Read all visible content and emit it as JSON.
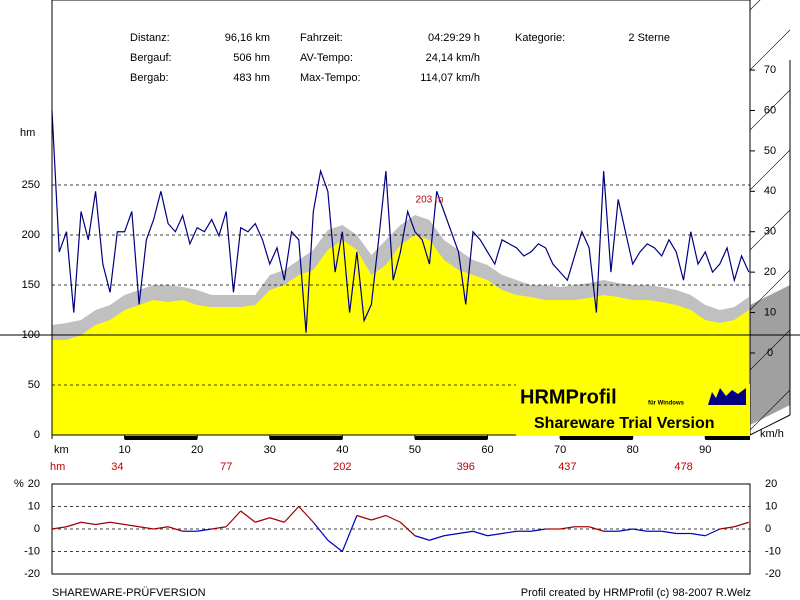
{
  "header": {
    "stats": [
      {
        "label": "Distanz:",
        "value": "96,16 km"
      },
      {
        "label": "Bergauf:",
        "value": "506 hm"
      },
      {
        "label": "Bergab:",
        "value": "483 hm"
      },
      {
        "label": "Fahrzeit:",
        "value": "04:29:29 h"
      },
      {
        "label": "AV-Tempo:",
        "value": "24,14 km/h"
      },
      {
        "label": "Max-Tempo:",
        "value": "114,07 km/h"
      },
      {
        "label": "Kategorie:",
        "value": "2 Sterne"
      }
    ]
  },
  "logo": {
    "title": "HRMProfil",
    "subtitle": "für Windows",
    "trial": "Shareware Trial  Version"
  },
  "footer": {
    "left": "SHAREWARE-PRÜFVERSION",
    "right": "Profil created by HRMProfil (c) 98-2007 R.Welz"
  },
  "chart_data": [
    {
      "type": "area",
      "y_label": "hm",
      "y2_label": "km/h",
      "annotation": {
        "text": "203 m",
        "x": 52
      },
      "climb": {
        "label": "hm",
        "x": [
          9,
          24,
          40,
          57,
          71,
          87
        ],
        "values": [
          34,
          77,
          202,
          396,
          437,
          478
        ]
      },
      "xlim": [
        0,
        96.16
      ],
      "xticks": [
        {
          "value": 0,
          "label": "km"
        },
        10,
        20,
        30,
        40,
        50,
        60,
        70,
        80,
        90
      ],
      "ylim": [
        0,
        430
      ],
      "yticks": [
        0,
        50,
        100,
        150,
        200,
        250
      ],
      "y2lim": [
        -20.3,
        86.1
      ],
      "y2ticks": [
        0,
        10,
        20,
        30,
        40,
        50,
        60,
        70
      ],
      "grid": true,
      "x": [
        0,
        2,
        4,
        6,
        8,
        10,
        12,
        14,
        16,
        18,
        20,
        22,
        24,
        26,
        28,
        30,
        32,
        34,
        36,
        38,
        40,
        42,
        44,
        46,
        48,
        50,
        52,
        54,
        56,
        58,
        60,
        62,
        64,
        66,
        68,
        70,
        72,
        74,
        76,
        78,
        80,
        82,
        84,
        86,
        88,
        90,
        92,
        94,
        96
      ],
      "series": [
        {
          "color": "#c0c0c0",
          "values": [
            110,
            112,
            115,
            125,
            130,
            140,
            145,
            150,
            150,
            148,
            145,
            140,
            140,
            140,
            140,
            160,
            165,
            175,
            185,
            205,
            210,
            200,
            180,
            195,
            210,
            220,
            215,
            195,
            185,
            175,
            170,
            160,
            155,
            150,
            150,
            148,
            150,
            152,
            155,
            152,
            150,
            150,
            148,
            145,
            140,
            130,
            125,
            128,
            138
          ]
        },
        {
          "color": "#ffff00",
          "values": [
            95,
            95,
            100,
            110,
            115,
            125,
            130,
            135,
            133,
            135,
            130,
            128,
            128,
            128,
            130,
            145,
            150,
            160,
            165,
            185,
            195,
            185,
            160,
            170,
            190,
            200,
            195,
            175,
            165,
            160,
            155,
            145,
            140,
            138,
            135,
            135,
            135,
            137,
            140,
            138,
            135,
            135,
            133,
            130,
            125,
            115,
            112,
            115,
            125
          ]
        },
        {
          "color": "#000080",
          "axis": "y2",
          "x": [
            0,
            1,
            2,
            3,
            4,
            5,
            6,
            7,
            8,
            9,
            10,
            11,
            12,
            13,
            14,
            15,
            16,
            17,
            18,
            19,
            20,
            21,
            22,
            23,
            24,
            25,
            26,
            27,
            28,
            29,
            30,
            31,
            32,
            33,
            34,
            35,
            36,
            37,
            38,
            39,
            40,
            41,
            42,
            43,
            44,
            45,
            46,
            47,
            48,
            49,
            50,
            51,
            52,
            53,
            54,
            55,
            56,
            57,
            58,
            59,
            60,
            61,
            62,
            63,
            64,
            65,
            66,
            67,
            68,
            69,
            70,
            71,
            72,
            73,
            74,
            75,
            76,
            77,
            78,
            79,
            80,
            81,
            82,
            83,
            84,
            85,
            86,
            87,
            88,
            89,
            90,
            91,
            92,
            93,
            94,
            95,
            96
          ],
          "values": [
            60,
            25,
            30,
            10,
            35,
            28,
            40,
            22,
            15,
            30,
            30,
            35,
            12,
            28,
            33,
            40,
            32,
            30,
            34,
            27,
            31,
            30,
            33,
            29,
            35,
            15,
            31,
            30,
            32,
            28,
            22,
            26,
            18,
            30,
            28,
            5,
            35,
            45,
            40,
            20,
            30,
            10,
            25,
            8,
            12,
            28,
            45,
            18,
            25,
            35,
            30,
            28,
            22,
            40,
            35,
            30,
            25,
            12,
            30,
            28,
            25,
            22,
            28,
            27,
            26,
            24,
            25,
            27,
            26,
            22,
            20,
            18,
            24,
            30,
            26,
            10,
            45,
            20,
            38,
            30,
            22,
            25,
            27,
            26,
            24,
            28,
            25,
            18,
            30,
            22,
            25,
            20,
            22,
            26,
            18,
            24,
            20
          ]
        }
      ]
    },
    {
      "type": "line",
      "y_label": "%",
      "xlim": [
        0,
        96.16
      ],
      "ylim": [
        -20,
        20
      ],
      "yticks": [
        20,
        10,
        0,
        -10,
        -20
      ],
      "grid": true,
      "positive_color": "#a00000",
      "negative_color": "#0000c0",
      "x": [
        0,
        2,
        4,
        6,
        8,
        10,
        12,
        14,
        16,
        18,
        20,
        22,
        24,
        26,
        28,
        30,
        32,
        34,
        36,
        38,
        40,
        42,
        44,
        46,
        48,
        50,
        52,
        54,
        56,
        58,
        60,
        62,
        64,
        66,
        68,
        70,
        72,
        74,
        76,
        78,
        80,
        82,
        84,
        86,
        88,
        90,
        92,
        94,
        96
      ],
      "values": [
        0,
        1,
        3,
        2,
        3,
        2,
        1,
        0,
        1,
        -1,
        -1,
        0,
        1,
        8,
        3,
        5,
        3,
        10,
        3,
        -5,
        -10,
        6,
        4,
        6,
        3,
        -3,
        -5,
        -3,
        -2,
        -1,
        -3,
        -2,
        -1,
        -1,
        0,
        0,
        1,
        1,
        -1,
        -1,
        0,
        -1,
        -1,
        -2,
        -2,
        -3,
        0,
        1,
        3
      ]
    }
  ]
}
